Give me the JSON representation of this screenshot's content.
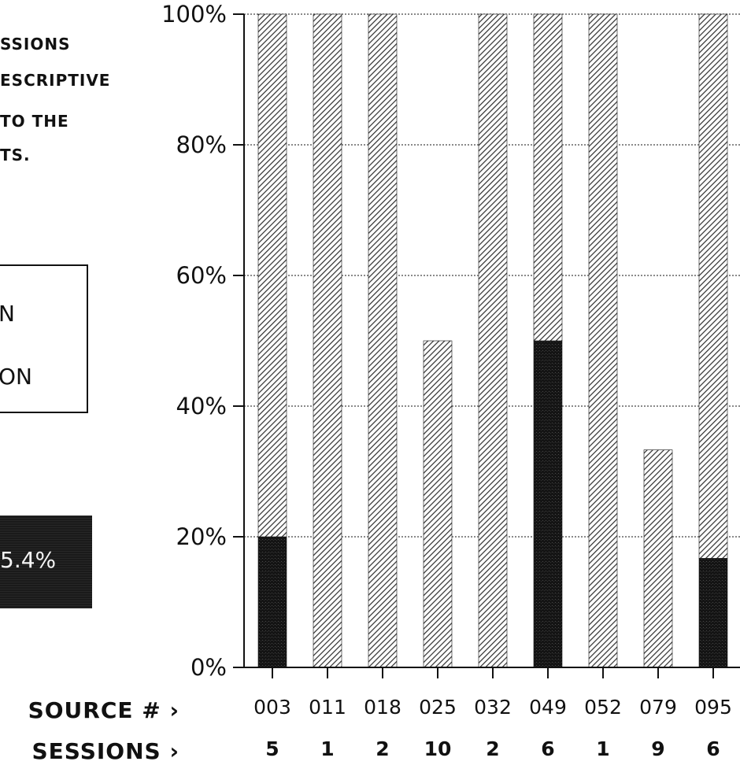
{
  "description_lines": [
    "SSIONS",
    "ESCRIPTIVE",
    "TO THE",
    "TS."
  ],
  "legend": {
    "item1": "N",
    "item2": "ON"
  },
  "highlight_value": "5.4%",
  "row_labels": {
    "source": "SOURCE # ›",
    "sessions": "SESSIONS ›"
  },
  "colors": {
    "hatch": "#3a3a3a",
    "dark": "#161616",
    "axis": "#111111"
  },
  "chart_data": {
    "type": "bar",
    "stacked": true,
    "categories": [
      "003",
      "011",
      "018",
      "025",
      "032",
      "049",
      "052",
      "079",
      "095"
    ],
    "sessions": [
      "5",
      "1",
      "2",
      "10",
      "2",
      "6",
      "1",
      "9",
      "6"
    ],
    "series": [
      {
        "fill": "dark-stipple",
        "values": [
          20,
          0,
          0,
          0,
          0,
          50,
          0,
          0,
          16.7
        ]
      },
      {
        "fill": "diagonal-hatch",
        "values": [
          80,
          100,
          100,
          50,
          100,
          50,
          100,
          33.3,
          83.3
        ]
      }
    ],
    "y_ticks": [
      "0%",
      "20%",
      "40%",
      "60%",
      "80%",
      "100%"
    ],
    "ylim": [
      0,
      100
    ],
    "grid": true
  }
}
